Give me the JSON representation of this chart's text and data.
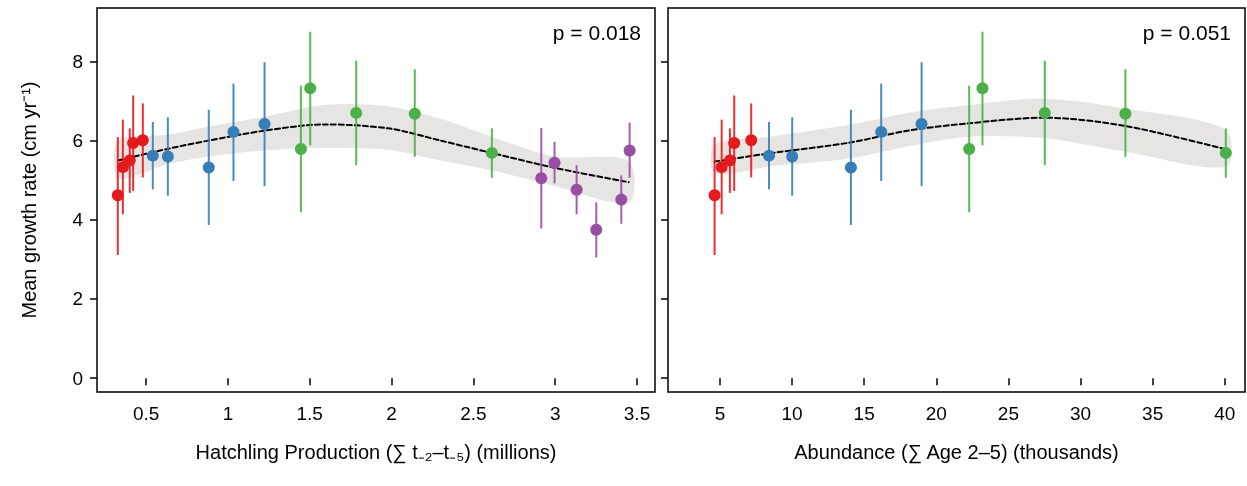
{
  "chart_data": [
    {
      "type": "scatter",
      "xlabel": "Hatchling Production (∑ t₋₂–t₋₅) (millions)",
      "ylabel": "Mean growth rate (cm yr⁻¹)",
      "annotations": [
        "p = 0.018"
      ],
      "xlim": [
        0.2,
        3.61
      ],
      "xticks": [
        0.5,
        1,
        1.5,
        2,
        2.5,
        3,
        3.5
      ],
      "ylim": [
        -0.35,
        9.35
      ],
      "yticks": [
        0,
        2,
        4,
        6,
        8
      ],
      "marker": "circle",
      "series": [
        {
          "color": "#e41a1c",
          "x": [
            0.327,
            0.358,
            0.4,
            0.421,
            0.48
          ],
          "values": [
            4.62,
            5.33,
            5.5,
            5.94,
            6.01
          ],
          "errors": [
            [
              3.11,
              6.09
            ],
            [
              4.14,
              6.53
            ],
            [
              4.68,
              6.31
            ],
            [
              4.73,
              7.14
            ],
            [
              5.07,
              6.94
            ]
          ]
        },
        {
          "color": "#377eb8",
          "x": [
            0.541,
            0.633,
            0.883,
            1.034,
            1.224
          ],
          "values": [
            5.62,
            5.6,
            5.32,
            6.22,
            6.42
          ],
          "errors": [
            [
              4.77,
              6.47
            ],
            [
              4.61,
              6.59
            ],
            [
              3.87,
              6.78
            ],
            [
              4.98,
              7.44
            ],
            [
              4.85,
              7.98
            ]
          ]
        },
        {
          "color": "#4daf4a",
          "x": [
            1.446,
            1.503,
            1.784,
            2.142,
            2.613
          ],
          "values": [
            5.79,
            7.32,
            6.7,
            6.68,
            5.69
          ],
          "errors": [
            [
              4.19,
              7.39
            ],
            [
              5.88,
              8.75
            ],
            [
              5.38,
              8.02
            ],
            [
              5.59,
              7.8
            ],
            [
              5.06,
              6.31
            ]
          ]
        },
        {
          "color": "#984ea3",
          "x": [
            2.915,
            2.996,
            3.131,
            3.251,
            3.404,
            3.455
          ],
          "values": [
            5.05,
            5.44,
            4.76,
            3.75,
            4.51,
            5.75
          ],
          "errors": [
            [
              3.78,
              6.32
            ],
            [
              4.92,
              5.97
            ],
            [
              4.14,
              5.38
            ],
            [
              3.05,
              4.44
            ],
            [
              3.9,
              5.12
            ],
            [
              5.06,
              6.45
            ]
          ]
        },
        {
          "type": "line",
          "color": "#000000",
          "line_style": "dashed",
          "marker": "none",
          "x": [
            0.33,
            0.63,
            0.88,
            1.22,
            1.59,
            1.98,
            2.3,
            2.61,
            3.0,
            3.45
          ],
          "values": [
            5.5,
            5.79,
            6.0,
            6.25,
            6.41,
            6.31,
            6.0,
            5.69,
            5.31,
            4.95
          ],
          "lower": [
            5.05,
            5.4,
            5.6,
            5.75,
            5.82,
            5.77,
            5.5,
            5.25,
            4.85,
            4.44
          ],
          "upper": [
            6.0,
            6.15,
            6.35,
            6.6,
            6.9,
            6.87,
            6.55,
            6.1,
            5.6,
            5.48
          ]
        }
      ]
    },
    {
      "type": "scatter",
      "xlabel": "Abundance (∑ Age 2–5) (thousands)",
      "annotations": [
        "p = 0.051"
      ],
      "xlim": [
        1.4,
        41.4
      ],
      "xticks": [
        5,
        10,
        15,
        20,
        25,
        30,
        35,
        40
      ],
      "ylim": [
        -0.35,
        9.35
      ],
      "yticks": [
        0,
        2,
        4,
        6,
        8
      ],
      "tick_labels": "x",
      "marker": "circle",
      "series": [
        {
          "color": "#e41a1c",
          "x": [
            4.63,
            5.12,
            5.69,
            5.99,
            7.17
          ],
          "values": [
            4.62,
            5.33,
            5.5,
            5.94,
            6.01
          ],
          "errors": [
            [
              3.11,
              6.09
            ],
            [
              4.14,
              6.53
            ],
            [
              4.68,
              6.31
            ],
            [
              4.73,
              7.14
            ],
            [
              5.07,
              6.94
            ]
          ]
        },
        {
          "color": "#377eb8",
          "x": [
            8.4,
            10.01,
            14.08,
            16.18,
            18.98
          ],
          "values": [
            5.62,
            5.6,
            5.32,
            6.22,
            6.42
          ],
          "errors": [
            [
              4.77,
              6.47
            ],
            [
              4.61,
              6.59
            ],
            [
              3.87,
              6.78
            ],
            [
              4.98,
              7.44
            ],
            [
              4.85,
              7.98
            ]
          ]
        },
        {
          "color": "#4daf4a",
          "x": [
            22.28,
            23.2,
            27.52,
            33.11,
            40.07
          ],
          "values": [
            5.79,
            7.32,
            6.7,
            6.68,
            5.69
          ],
          "errors": [
            [
              4.19,
              7.39
            ],
            [
              5.88,
              8.75
            ],
            [
              5.38,
              8.02
            ],
            [
              5.59,
              7.8
            ],
            [
              5.06,
              6.31
            ]
          ]
        },
        {
          "type": "line",
          "color": "#000000",
          "line_style": "dashed",
          "marker": "none",
          "x": [
            4.63,
            8.47,
            14.0,
            18.0,
            22.3,
            27.5,
            33.1,
            40.07
          ],
          "values": [
            5.47,
            5.68,
            5.95,
            6.25,
            6.44,
            6.58,
            6.37,
            5.78
          ],
          "lower": [
            5.18,
            5.35,
            5.55,
            5.85,
            6.1,
            6.06,
            5.72,
            5.34
          ],
          "upper": [
            5.89,
            6.1,
            6.4,
            6.7,
            6.9,
            7.06,
            6.81,
            6.27
          ]
        }
      ]
    }
  ]
}
